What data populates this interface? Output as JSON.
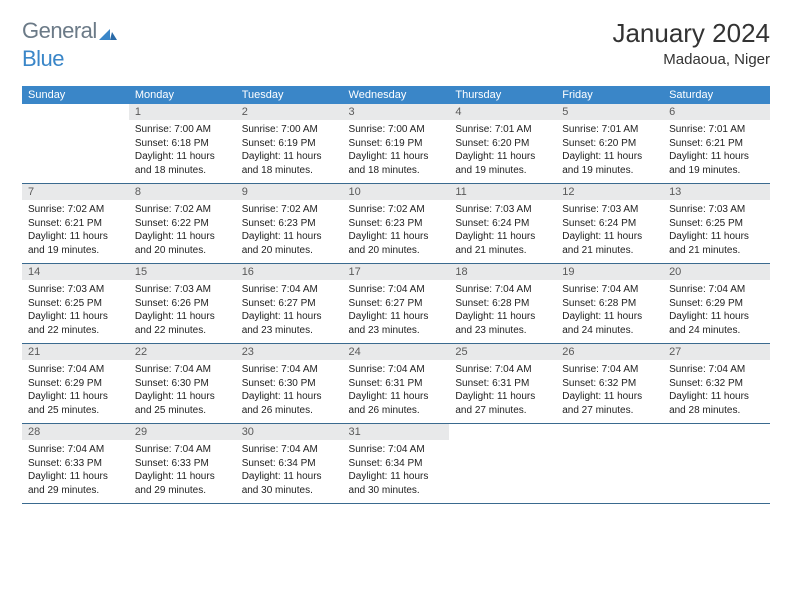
{
  "logo": {
    "part1": "General",
    "part2": "Blue"
  },
  "title": "January 2024",
  "subtitle": "Madaoua, Niger",
  "brand_color": "#3a86c8",
  "daynum_bg": "#e8e9ea",
  "border_color": "#3a6a8f",
  "dayheads": [
    "Sunday",
    "Monday",
    "Tuesday",
    "Wednesday",
    "Thursday",
    "Friday",
    "Saturday"
  ],
  "weeks": [
    [
      null,
      {
        "n": "1",
        "sr": "7:00 AM",
        "ss": "6:18 PM",
        "dh": "11",
        "dm": "18"
      },
      {
        "n": "2",
        "sr": "7:00 AM",
        "ss": "6:19 PM",
        "dh": "11",
        "dm": "18"
      },
      {
        "n": "3",
        "sr": "7:00 AM",
        "ss": "6:19 PM",
        "dh": "11",
        "dm": "18"
      },
      {
        "n": "4",
        "sr": "7:01 AM",
        "ss": "6:20 PM",
        "dh": "11",
        "dm": "19"
      },
      {
        "n": "5",
        "sr": "7:01 AM",
        "ss": "6:20 PM",
        "dh": "11",
        "dm": "19"
      },
      {
        "n": "6",
        "sr": "7:01 AM",
        "ss": "6:21 PM",
        "dh": "11",
        "dm": "19"
      }
    ],
    [
      {
        "n": "7",
        "sr": "7:02 AM",
        "ss": "6:21 PM",
        "dh": "11",
        "dm": "19"
      },
      {
        "n": "8",
        "sr": "7:02 AM",
        "ss": "6:22 PM",
        "dh": "11",
        "dm": "20"
      },
      {
        "n": "9",
        "sr": "7:02 AM",
        "ss": "6:23 PM",
        "dh": "11",
        "dm": "20"
      },
      {
        "n": "10",
        "sr": "7:02 AM",
        "ss": "6:23 PM",
        "dh": "11",
        "dm": "20"
      },
      {
        "n": "11",
        "sr": "7:03 AM",
        "ss": "6:24 PM",
        "dh": "11",
        "dm": "21"
      },
      {
        "n": "12",
        "sr": "7:03 AM",
        "ss": "6:24 PM",
        "dh": "11",
        "dm": "21"
      },
      {
        "n": "13",
        "sr": "7:03 AM",
        "ss": "6:25 PM",
        "dh": "11",
        "dm": "21"
      }
    ],
    [
      {
        "n": "14",
        "sr": "7:03 AM",
        "ss": "6:25 PM",
        "dh": "11",
        "dm": "22"
      },
      {
        "n": "15",
        "sr": "7:03 AM",
        "ss": "6:26 PM",
        "dh": "11",
        "dm": "22"
      },
      {
        "n": "16",
        "sr": "7:04 AM",
        "ss": "6:27 PM",
        "dh": "11",
        "dm": "23"
      },
      {
        "n": "17",
        "sr": "7:04 AM",
        "ss": "6:27 PM",
        "dh": "11",
        "dm": "23"
      },
      {
        "n": "18",
        "sr": "7:04 AM",
        "ss": "6:28 PM",
        "dh": "11",
        "dm": "23"
      },
      {
        "n": "19",
        "sr": "7:04 AM",
        "ss": "6:28 PM",
        "dh": "11",
        "dm": "24"
      },
      {
        "n": "20",
        "sr": "7:04 AM",
        "ss": "6:29 PM",
        "dh": "11",
        "dm": "24"
      }
    ],
    [
      {
        "n": "21",
        "sr": "7:04 AM",
        "ss": "6:29 PM",
        "dh": "11",
        "dm": "25"
      },
      {
        "n": "22",
        "sr": "7:04 AM",
        "ss": "6:30 PM",
        "dh": "11",
        "dm": "25"
      },
      {
        "n": "23",
        "sr": "7:04 AM",
        "ss": "6:30 PM",
        "dh": "11",
        "dm": "26"
      },
      {
        "n": "24",
        "sr": "7:04 AM",
        "ss": "6:31 PM",
        "dh": "11",
        "dm": "26"
      },
      {
        "n": "25",
        "sr": "7:04 AM",
        "ss": "6:31 PM",
        "dh": "11",
        "dm": "27"
      },
      {
        "n": "26",
        "sr": "7:04 AM",
        "ss": "6:32 PM",
        "dh": "11",
        "dm": "27"
      },
      {
        "n": "27",
        "sr": "7:04 AM",
        "ss": "6:32 PM",
        "dh": "11",
        "dm": "28"
      }
    ],
    [
      {
        "n": "28",
        "sr": "7:04 AM",
        "ss": "6:33 PM",
        "dh": "11",
        "dm": "29"
      },
      {
        "n": "29",
        "sr": "7:04 AM",
        "ss": "6:33 PM",
        "dh": "11",
        "dm": "29"
      },
      {
        "n": "30",
        "sr": "7:04 AM",
        "ss": "6:34 PM",
        "dh": "11",
        "dm": "30"
      },
      {
        "n": "31",
        "sr": "7:04 AM",
        "ss": "6:34 PM",
        "dh": "11",
        "dm": "30"
      },
      null,
      null,
      null
    ]
  ]
}
